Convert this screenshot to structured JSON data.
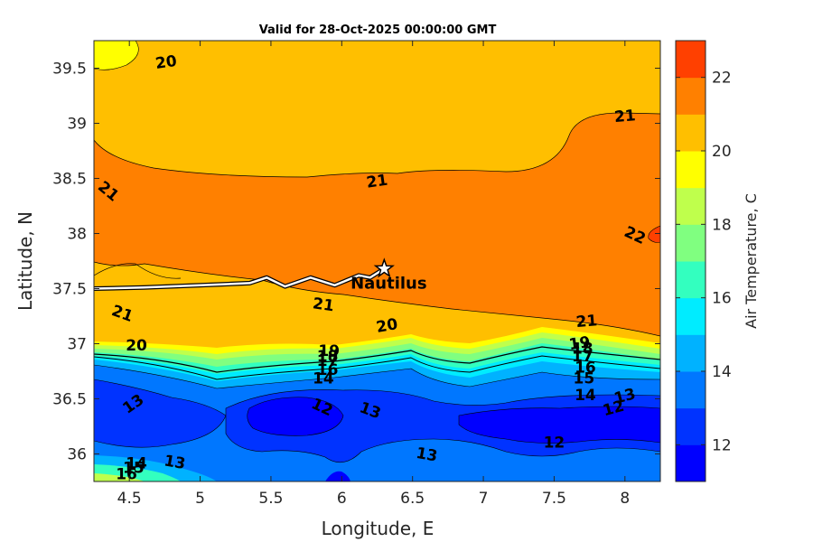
{
  "chart_data": {
    "type": "contourf",
    "title": "Valid for 28-Oct-2025 00:00:00 GMT",
    "xlabel": "Longitude, E",
    "ylabel": "Latitude, N",
    "colorbar_label": "Air Temperature, C",
    "xlim": [
      4.25,
      8.25
    ],
    "ylim": [
      35.75,
      39.75
    ],
    "xticks": [
      4.5,
      5,
      5.5,
      6,
      6.5,
      7,
      7.5,
      8
    ],
    "xtick_labels": [
      "4.5",
      "5",
      "5.5",
      "6",
      "6.5",
      "7",
      "7.5",
      "8"
    ],
    "yticks": [
      36,
      36.5,
      37,
      37.5,
      38,
      38.5,
      39,
      39.5
    ],
    "ytick_labels": [
      "36",
      "36.5",
      "37",
      "37.5",
      "38",
      "38.5",
      "39",
      "39.5"
    ],
    "colorbar": {
      "range": [
        11,
        23
      ],
      "ticks": [
        12,
        14,
        16,
        18,
        20,
        22
      ],
      "tick_labels": [
        "12",
        "14",
        "16",
        "18",
        "20",
        "22"
      ],
      "levels": [
        11,
        12,
        13,
        14,
        15,
        16,
        17,
        18,
        19,
        20,
        21,
        22,
        23
      ],
      "colors": [
        "#0000ff",
        "#0033ff",
        "#0077ff",
        "#00b2ff",
        "#00ecff",
        "#33ffbf",
        "#80ff80",
        "#bfff4c",
        "#ffff00",
        "#ffbf00",
        "#ff8000",
        "#ff4000",
        "#ff0000"
      ]
    },
    "regions": [
      {
        "name": "south-deep-blue",
        "level": 12
      },
      {
        "name": "south-blue",
        "level": 13
      },
      {
        "name": "front-band-14",
        "level": 14
      },
      {
        "name": "front-band-15",
        "level": 15
      },
      {
        "name": "front-band-16",
        "level": 16
      },
      {
        "name": "front-band-17",
        "level": 17
      },
      {
        "name": "front-band-18",
        "level": 18
      },
      {
        "name": "front-band-19",
        "level": 19
      },
      {
        "name": "north-yellow",
        "level": 20
      },
      {
        "name": "central-orange",
        "level": 21
      },
      {
        "name": "east-red",
        "level": 22
      }
    ],
    "contour_labels": [
      {
        "text": "20",
        "lon": 4.76,
        "lat": 39.55,
        "rot": -8
      },
      {
        "text": "21",
        "lon": 8.0,
        "lat": 39.06,
        "rot": -5
      },
      {
        "text": "21",
        "lon": 4.35,
        "lat": 38.38,
        "rot": 40
      },
      {
        "text": "21",
        "lon": 6.25,
        "lat": 38.47,
        "rot": -8
      },
      {
        "text": "22",
        "lon": 8.07,
        "lat": 37.98,
        "rot": 25
      },
      {
        "text": "21",
        "lon": 4.45,
        "lat": 37.27,
        "rot": 20
      },
      {
        "text": "21",
        "lon": 5.87,
        "lat": 37.35,
        "rot": 8
      },
      {
        "text": "20",
        "lon": 6.32,
        "lat": 37.16,
        "rot": -10
      },
      {
        "text": "21",
        "lon": 7.73,
        "lat": 37.2,
        "rot": -5
      },
      {
        "text": "20",
        "lon": 4.55,
        "lat": 36.98,
        "rot": 0
      },
      {
        "text": "19",
        "lon": 5.91,
        "lat": 36.93,
        "rot": 0
      },
      {
        "text": "18",
        "lon": 5.9,
        "lat": 36.88,
        "rot": 0
      },
      {
        "text": "17",
        "lon": 5.9,
        "lat": 36.84,
        "rot": 0
      },
      {
        "text": "16",
        "lon": 5.9,
        "lat": 36.76,
        "rot": 0
      },
      {
        "text": "14",
        "lon": 5.87,
        "lat": 36.68,
        "rot": 0
      },
      {
        "text": "19",
        "lon": 7.68,
        "lat": 37.0,
        "rot": -8
      },
      {
        "text": "18",
        "lon": 7.7,
        "lat": 36.95,
        "rot": 0
      },
      {
        "text": "17",
        "lon": 7.7,
        "lat": 36.88,
        "rot": 0
      },
      {
        "text": "16",
        "lon": 7.72,
        "lat": 36.78,
        "rot": 0
      },
      {
        "text": "15",
        "lon": 7.71,
        "lat": 36.68,
        "rot": 0
      },
      {
        "text": "14",
        "lon": 7.72,
        "lat": 36.53,
        "rot": 0
      },
      {
        "text": "13",
        "lon": 4.53,
        "lat": 36.45,
        "rot": -35
      },
      {
        "text": "12",
        "lon": 5.86,
        "lat": 36.42,
        "rot": 25
      },
      {
        "text": "13",
        "lon": 6.2,
        "lat": 36.39,
        "rot": 20
      },
      {
        "text": "13",
        "lon": 8.0,
        "lat": 36.52,
        "rot": -15
      },
      {
        "text": "12",
        "lon": 7.92,
        "lat": 36.41,
        "rot": -15
      },
      {
        "text": "12",
        "lon": 7.5,
        "lat": 36.1,
        "rot": 0
      },
      {
        "text": "13",
        "lon": 6.6,
        "lat": 35.99,
        "rot": 10
      },
      {
        "text": "13",
        "lon": 4.82,
        "lat": 35.92,
        "rot": 10
      },
      {
        "text": "14",
        "lon": 4.55,
        "lat": 35.91,
        "rot": 0
      },
      {
        "text": "15",
        "lon": 4.53,
        "lat": 35.87,
        "rot": 0
      },
      {
        "text": "16",
        "lon": 4.48,
        "lat": 35.81,
        "rot": 0
      }
    ],
    "ship": {
      "name": "Nautilus",
      "lon": 6.3,
      "lat": 37.68,
      "track": [
        [
          4.25,
          37.5
        ],
        [
          4.6,
          37.51
        ],
        [
          5.0,
          37.53
        ],
        [
          5.35,
          37.55
        ],
        [
          5.47,
          37.6
        ],
        [
          5.6,
          37.52
        ],
        [
          5.78,
          37.6
        ],
        [
          5.95,
          37.53
        ],
        [
          6.12,
          37.62
        ],
        [
          6.2,
          37.6
        ],
        [
          6.3,
          37.68
        ]
      ]
    }
  }
}
